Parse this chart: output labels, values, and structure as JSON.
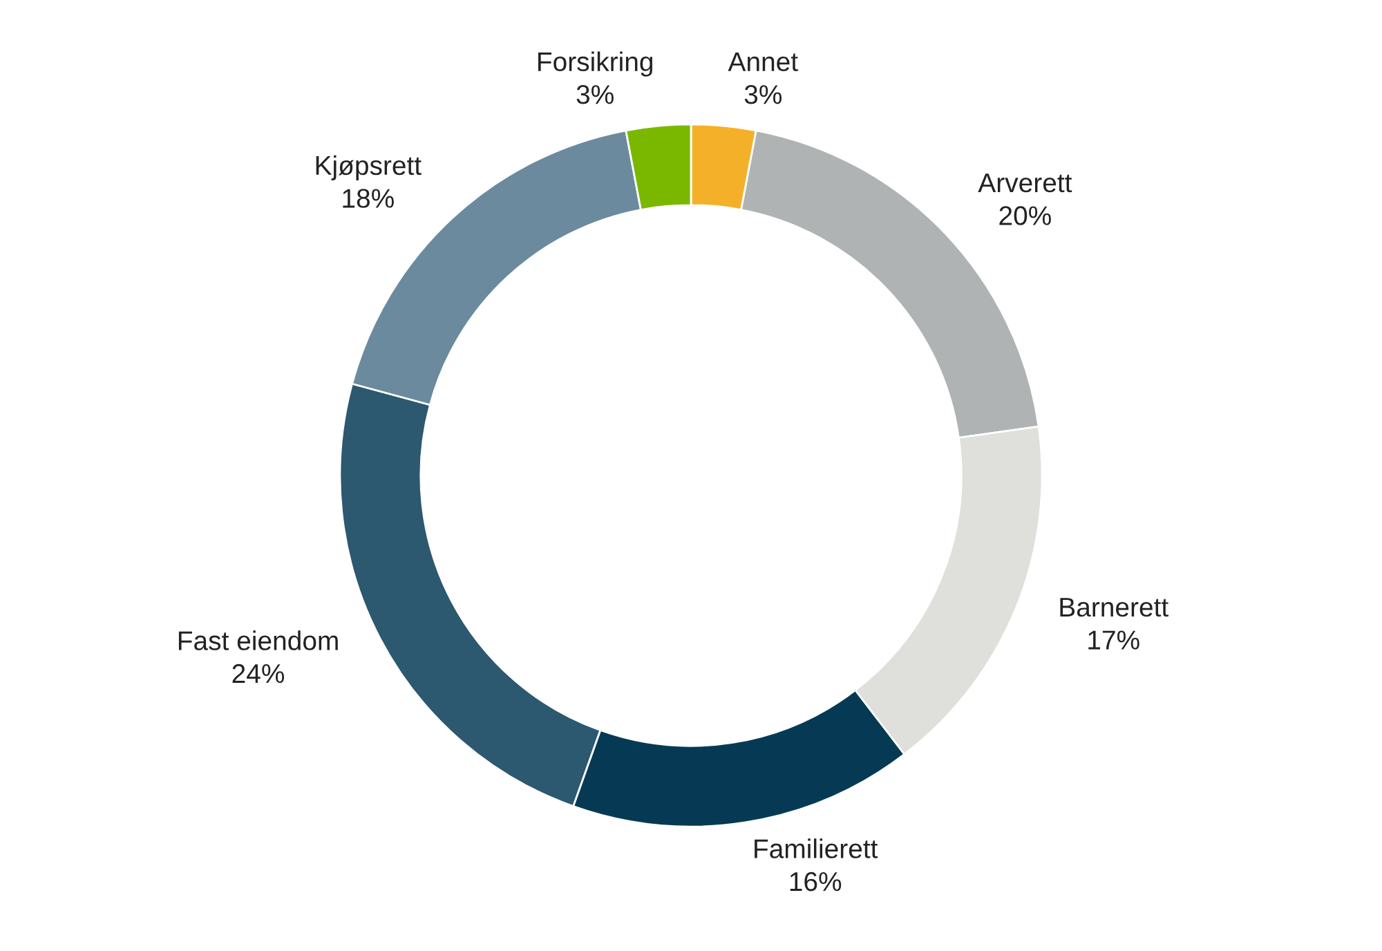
{
  "chart_data": {
    "type": "donut",
    "categories": [
      "Annet",
      "Arverett",
      "Barnerett",
      "Familierett",
      "Fast eiendom",
      "Kjøpsrett",
      "Forsikring"
    ],
    "values": [
      3,
      20,
      17,
      16,
      24,
      18,
      3
    ],
    "colors": [
      "#f5b02a",
      "#b0b3b3",
      "#dfe0dc",
      "#063a54",
      "#2c5870",
      "#6b8a9e",
      "#7ab800"
    ],
    "value_labels": [
      "3%",
      "20%",
      "17%",
      "16%",
      "24%",
      "18%",
      "3%"
    ]
  }
}
